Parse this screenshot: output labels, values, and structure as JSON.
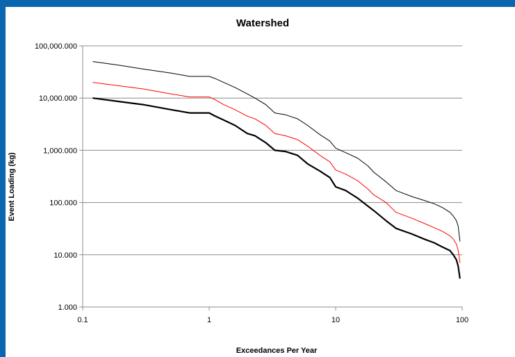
{
  "chart_data": {
    "type": "line",
    "title": "Watershed",
    "xlabel": "Exceedances Per Year",
    "ylabel": "Event Loading (kg)",
    "x_scale": "log",
    "y_scale": "log",
    "xlim": [
      0.1,
      100
    ],
    "ylim": [
      1,
      100000
    ],
    "x_ticks": [
      {
        "value": 0.1,
        "label": "0.1"
      },
      {
        "value": 1,
        "label": "1"
      },
      {
        "value": 10,
        "label": "10"
      },
      {
        "value": 100,
        "label": "100"
      }
    ],
    "y_ticks": [
      {
        "value": 1,
        "label": "1.000"
      },
      {
        "value": 10,
        "label": "10.000"
      },
      {
        "value": 100,
        "label": "100.000"
      },
      {
        "value": 1000,
        "label": "1,000.000"
      },
      {
        "value": 10000,
        "label": "10,000.000"
      },
      {
        "value": 100000,
        "label": "100,000.000"
      }
    ],
    "grid": {
      "horizontal": true,
      "vertical": false
    },
    "legend": "none",
    "series": [
      {
        "color": "#000000",
        "width": 1,
        "x": [
          0.12,
          0.2,
          0.3,
          0.5,
          0.7,
          1.0,
          1.1,
          1.3,
          1.6,
          2.0,
          2.3,
          2.8,
          3.3,
          4.0,
          5.0,
          6.0,
          7.5,
          9.0,
          10,
          12,
          15,
          18,
          20,
          25,
          30,
          40,
          50,
          60,
          70,
          80,
          85,
          90,
          93,
          96
        ],
        "values": [
          50000,
          42000,
          36000,
          30000,
          26000,
          26000,
          24000,
          20000,
          16000,
          12000,
          10000,
          7500,
          5200,
          4800,
          4000,
          3000,
          2000,
          1500,
          1100,
          900,
          700,
          500,
          380,
          250,
          170,
          130,
          110,
          95,
          80,
          65,
          55,
          45,
          35,
          18
        ]
      },
      {
        "color": "#ff0000",
        "width": 1,
        "x": [
          0.12,
          0.2,
          0.3,
          0.5,
          0.7,
          1.0,
          1.1,
          1.3,
          1.6,
          2.0,
          2.3,
          2.8,
          3.3,
          4.0,
          5.0,
          6.0,
          7.5,
          9.0,
          10,
          12,
          15,
          18,
          20,
          25,
          30,
          40,
          50,
          60,
          70,
          80,
          85,
          90,
          93,
          96
        ],
        "values": [
          20000,
          17000,
          15000,
          12000,
          10500,
          10500,
          9500,
          7500,
          6000,
          4500,
          4000,
          3000,
          2100,
          1900,
          1600,
          1200,
          800,
          600,
          420,
          350,
          260,
          180,
          140,
          100,
          65,
          50,
          40,
          33,
          28,
          23,
          20,
          16,
          12,
          7
        ]
      },
      {
        "color": "#000000",
        "width": 2.2,
        "x": [
          0.12,
          0.2,
          0.3,
          0.5,
          0.7,
          1.0,
          1.1,
          1.3,
          1.6,
          2.0,
          2.3,
          2.8,
          3.3,
          4.0,
          5.0,
          6.0,
          7.5,
          9.0,
          10,
          12,
          15,
          18,
          20,
          25,
          30,
          40,
          50,
          60,
          70,
          80,
          85,
          90,
          93,
          96
        ],
        "values": [
          10000,
          8500,
          7500,
          6000,
          5200,
          5200,
          4600,
          3800,
          3000,
          2100,
          1900,
          1400,
          1000,
          950,
          800,
          550,
          400,
          300,
          200,
          170,
          120,
          85,
          70,
          45,
          32,
          25,
          20,
          17,
          14,
          12,
          10,
          8,
          6,
          3.5
        ]
      }
    ]
  }
}
